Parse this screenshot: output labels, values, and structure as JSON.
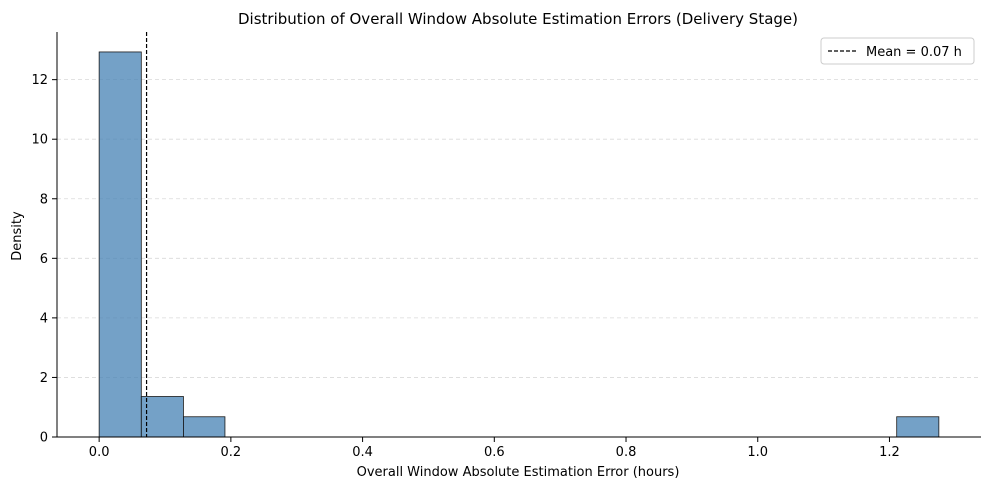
{
  "chart_data": {
    "type": "bar",
    "title": "Distribution of Overall Window Absolute Estimation Errors (Delivery Stage)",
    "xlabel": "Overall Window Absolute Estimation Error (hours)",
    "ylabel": "Density",
    "xlim": [
      -0.064,
      1.339
    ],
    "ylim": [
      0,
      13.6
    ],
    "xticks": [
      0.0,
      0.2,
      0.4,
      0.6,
      0.8,
      1.0,
      1.2
    ],
    "xtick_labels": [
      "0.0",
      "0.2",
      "0.4",
      "0.6",
      "0.8",
      "1.0",
      "1.2"
    ],
    "yticks": [
      0,
      2,
      4,
      6,
      8,
      10,
      12
    ],
    "ytick_labels": [
      "0",
      "2",
      "4",
      "6",
      "8",
      "10",
      "12"
    ],
    "grid": "y-dashed",
    "bar_color": "#4682b4",
    "bins": [
      {
        "x0": 0.0,
        "x1": 0.064,
        "value": 12.93
      },
      {
        "x0": 0.064,
        "x1": 0.128,
        "value": 1.36
      },
      {
        "x0": 0.128,
        "x1": 0.191,
        "value": 0.68
      },
      {
        "x0": 1.211,
        "x1": 1.275,
        "value": 0.68
      }
    ],
    "mean_line": {
      "x": 0.072,
      "label": "Mean = 0.07 h"
    },
    "legend": {
      "position": "top-right",
      "entries": [
        "Mean = 0.07 h"
      ]
    }
  }
}
